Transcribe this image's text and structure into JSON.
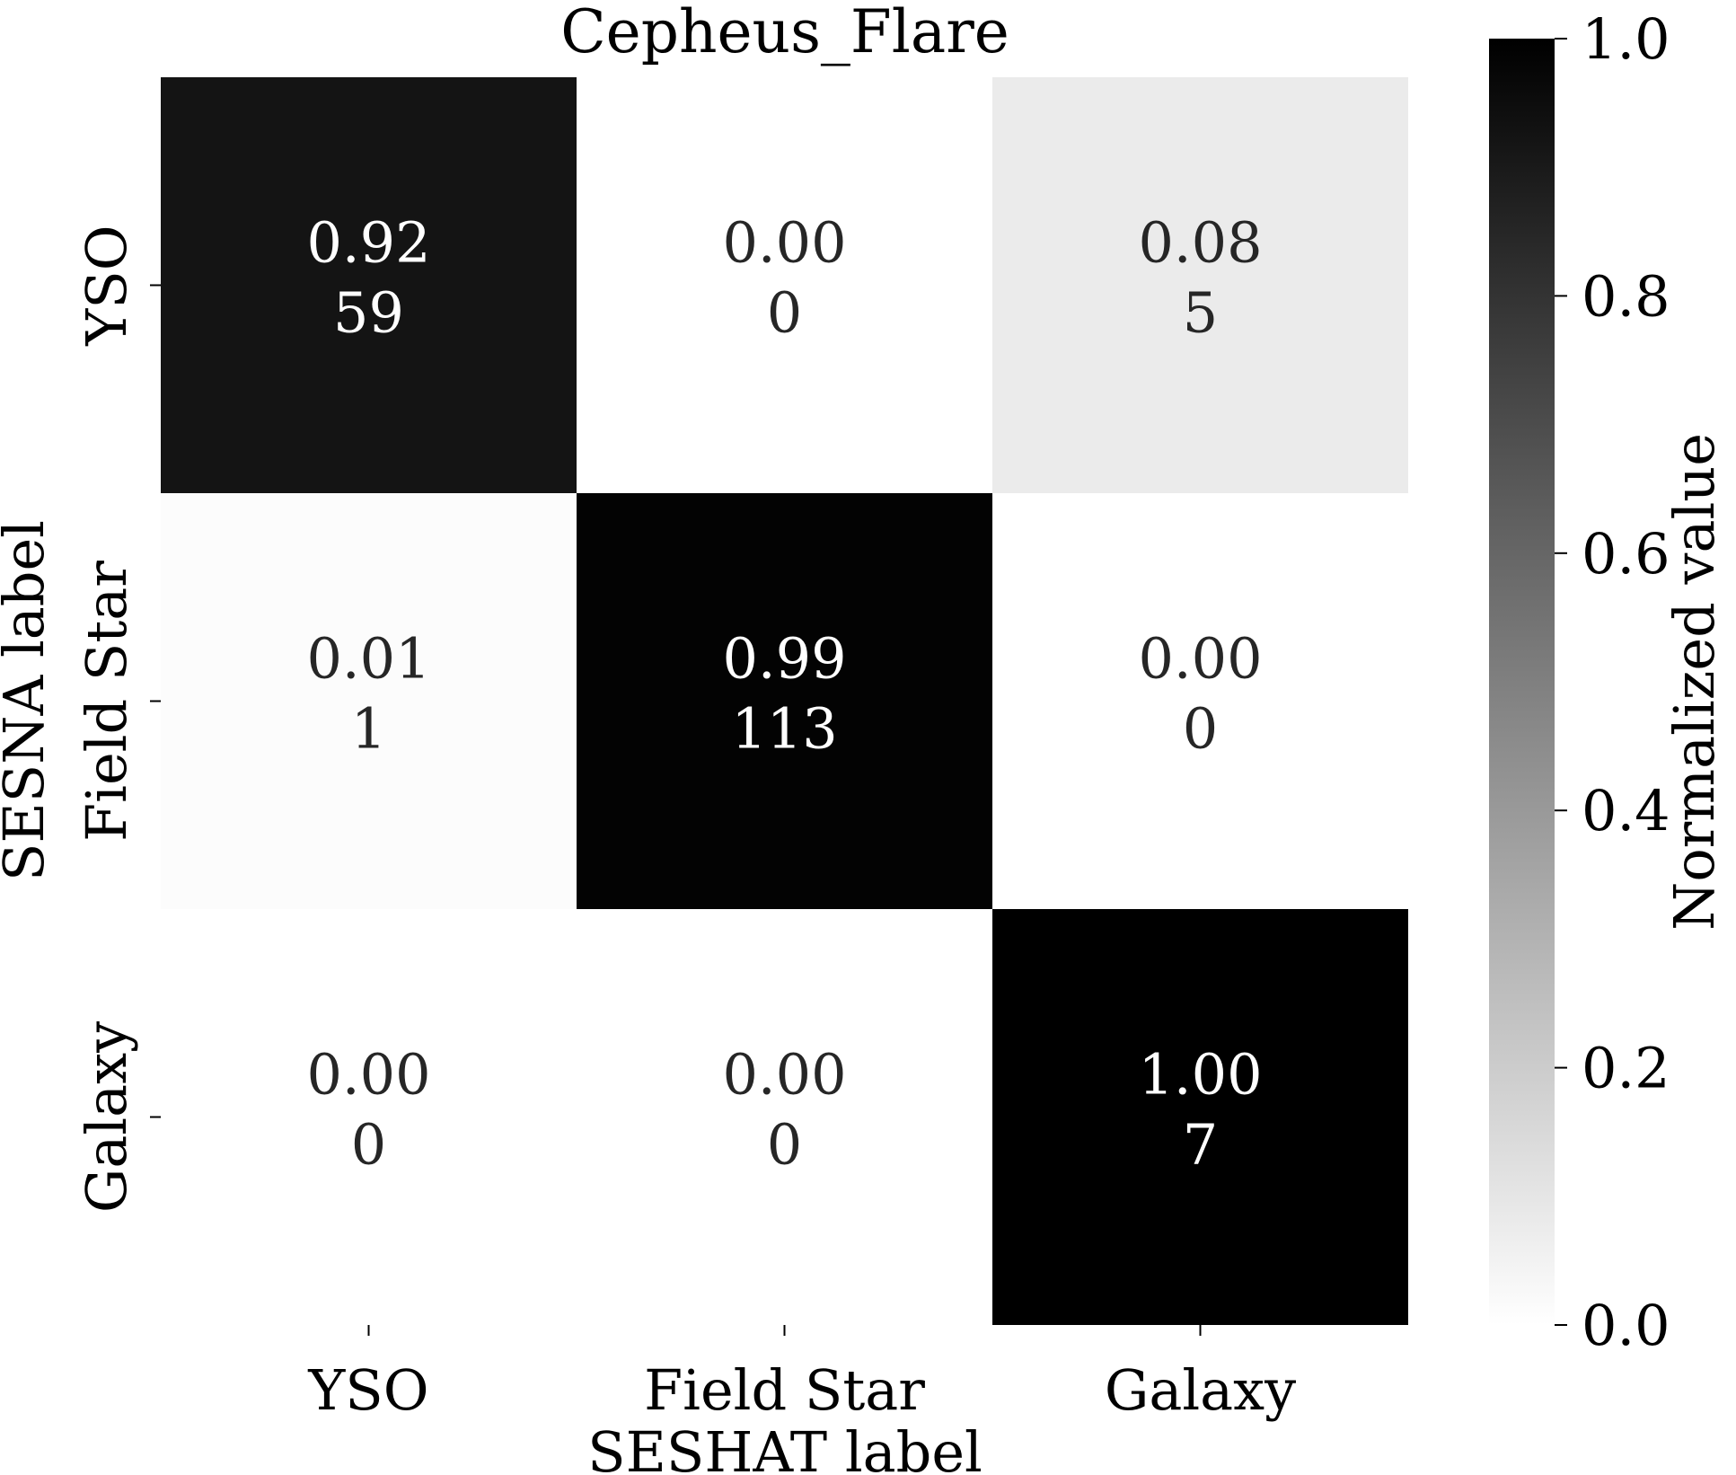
{
  "chart_data": {
    "type": "heatmap",
    "title": "Cepheus_Flare",
    "xlabel": "SESHAT label",
    "ylabel": "SESNA label",
    "x_categories": [
      "YSO",
      "Field Star",
      "Galaxy"
    ],
    "y_categories": [
      "YSO",
      "Field Star",
      "Galaxy"
    ],
    "values": [
      [
        0.92,
        0.0,
        0.08
      ],
      [
        0.01,
        0.99,
        0.0
      ],
      [
        0.0,
        0.0,
        1.0
      ]
    ],
    "value_labels": [
      [
        "0.92",
        "0.00",
        "0.08"
      ],
      [
        "0.01",
        "0.99",
        "0.00"
      ],
      [
        "0.00",
        "0.00",
        "1.00"
      ]
    ],
    "counts": [
      [
        "59",
        "0",
        "5"
      ],
      [
        "1",
        "113",
        "0"
      ],
      [
        "0",
        "0",
        "7"
      ]
    ],
    "colorbar": {
      "label": "Normalized value",
      "range": [
        0,
        1
      ],
      "ticks": [
        "0.0",
        "0.2",
        "0.4",
        "0.6",
        "0.8",
        "1.0"
      ],
      "colormap": "Greys"
    }
  }
}
